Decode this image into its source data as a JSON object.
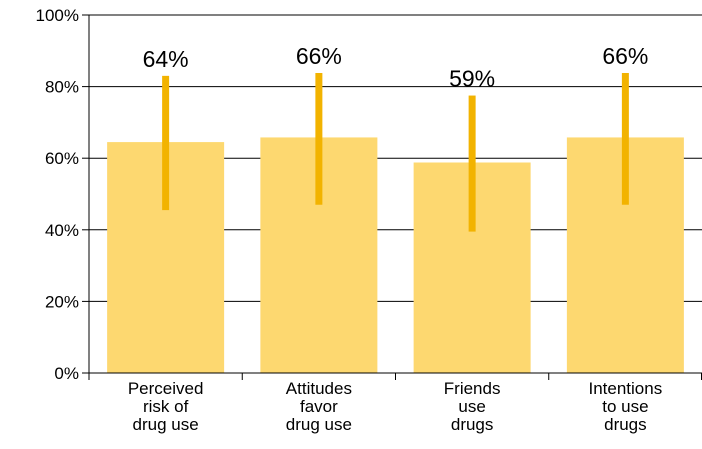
{
  "chart_data": {
    "type": "bar",
    "categories": [
      [
        "Perceived",
        "risk of",
        "drug use"
      ],
      [
        "Attitudes",
        "favor",
        "drug use"
      ],
      [
        "Friends",
        "use",
        "drugs"
      ],
      [
        "Intentions",
        "to use",
        "drugs"
      ]
    ],
    "values": [
      64.5,
      65.8,
      58.8,
      65.8
    ],
    "data_labels": [
      "64%",
      "66%",
      "59%",
      "66%"
    ],
    "error_ranges": [
      [
        45.5,
        83.0
      ],
      [
        47.0,
        83.8
      ],
      [
        39.5,
        77.5
      ],
      [
        47.0,
        83.8
      ]
    ],
    "ylim": [
      0,
      100
    ],
    "yticks": [
      0,
      20,
      40,
      60,
      80,
      100
    ],
    "ytick_labels": [
      "0%",
      "20%",
      "40%",
      "60%",
      "80%",
      "100%"
    ],
    "grid": true,
    "title": "",
    "xlabel": "",
    "ylabel": "",
    "colors": {
      "bar": "#FDD870",
      "error_bar": "#F2B300",
      "grid": "#000000",
      "axis": "#000000",
      "text": "#000000"
    }
  }
}
